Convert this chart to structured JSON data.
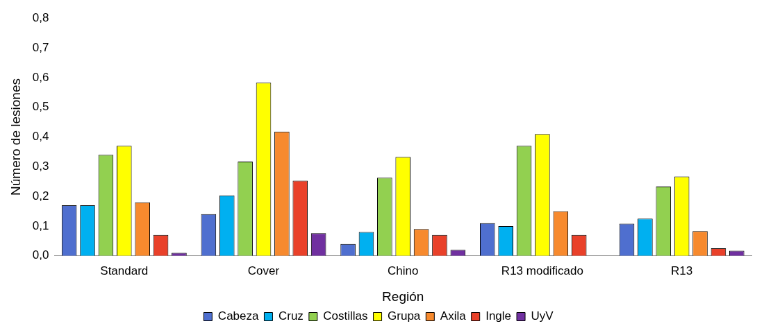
{
  "chart_data": {
    "type": "bar",
    "xlabel": "Región",
    "ylabel": "Número de lesiones",
    "categories": [
      "Standard",
      "Cover",
      "Chino",
      "R13 modificado",
      "R13"
    ],
    "series": [
      {
        "name": "Cabeza",
        "color": "#4f6fcf",
        "values": [
          0.17,
          0.14,
          0.04,
          0.11,
          0.108
        ]
      },
      {
        "name": "Cruz",
        "color": "#00b0f0",
        "values": [
          0.17,
          0.203,
          0.08,
          0.1,
          0.125
        ]
      },
      {
        "name": "Costillas",
        "color": "#92d050",
        "values": [
          0.34,
          0.317,
          0.263,
          0.37,
          0.233
        ]
      },
      {
        "name": "Grupa",
        "color": "#ffff00",
        "values": [
          0.37,
          0.583,
          0.333,
          0.41,
          0.267
        ]
      },
      {
        "name": "Axila",
        "color": "#f78a2e",
        "values": [
          0.18,
          0.418,
          0.09,
          0.15,
          0.083
        ]
      },
      {
        "name": "Ingle",
        "color": "#e9412a",
        "values": [
          0.07,
          0.253,
          0.07,
          0.07,
          0.025
        ]
      },
      {
        "name": "UyV",
        "color": "#7030a0",
        "values": [
          0.01,
          0.076,
          0.02,
          0,
          0.017
        ]
      }
    ],
    "ylim": [
      0,
      0.8
    ],
    "yticks": [
      {
        "value": 0,
        "label": "0,0"
      },
      {
        "value": 0.1,
        "label": "0,1"
      },
      {
        "value": 0.2,
        "label": "0,2"
      },
      {
        "value": 0.3,
        "label": "0,3"
      },
      {
        "value": 0.4,
        "label": "0,4"
      },
      {
        "value": 0.5,
        "label": "0,5"
      },
      {
        "value": 0.6,
        "label": "0,6"
      },
      {
        "value": 0.7,
        "label": "0,7"
      },
      {
        "value": 0.8,
        "label": "0,8"
      }
    ],
    "grid": false,
    "legend": "bottom"
  }
}
